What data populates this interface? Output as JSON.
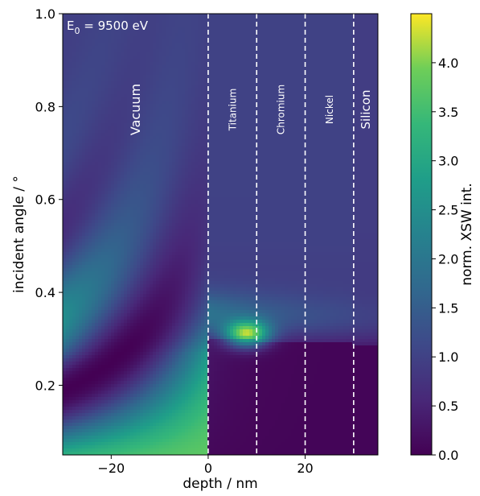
{
  "figure": {
    "annotation_base": "E",
    "annotation_sub": "0",
    "annotation_rest": " = 9500 eV"
  },
  "chart_data": {
    "type": "heatmap",
    "title": "",
    "xlabel": "depth / nm",
    "ylabel": "incident angle / °",
    "xlim": [
      -30,
      35
    ],
    "ylim": [
      0.05,
      1.0
    ],
    "x_ticks": [
      -20,
      0,
      20
    ],
    "x_tick_labels": [
      "−20",
      "0",
      "20"
    ],
    "y_ticks": [
      0.2,
      0.4,
      0.6,
      0.8,
      1.0
    ],
    "y_tick_labels": [
      "0.2",
      "0.4",
      "0.6",
      "0.8",
      "1.0"
    ],
    "colorbar": {
      "label": "norm. XSW int.",
      "colormap": "viridis",
      "range": [
        0.0,
        4.5
      ],
      "ticks": [
        0.0,
        0.5,
        1.0,
        1.5,
        2.0,
        2.5,
        3.0,
        3.5,
        4.0
      ],
      "tick_labels": [
        "0.0",
        "0.5",
        "1.0",
        "1.5",
        "2.0",
        "2.5",
        "3.0",
        "3.5",
        "4.0"
      ]
    },
    "layers": [
      {
        "name": "Vacuum",
        "x_start": -30,
        "x_end": 0
      },
      {
        "name": "Titanium",
        "x_start": 0,
        "x_end": 10
      },
      {
        "name": "Chromium",
        "x_start": 10,
        "x_end": 20
      },
      {
        "name": "Nickel",
        "x_start": 20,
        "x_end": 30
      },
      {
        "name": "Silicon",
        "x_start": 30,
        "x_end": 35
      }
    ],
    "interfaces": [
      0,
      10,
      20,
      30
    ],
    "grid": false,
    "peak_intensity": {
      "depth": 8,
      "angle": 0.31,
      "value": 4.5
    }
  }
}
